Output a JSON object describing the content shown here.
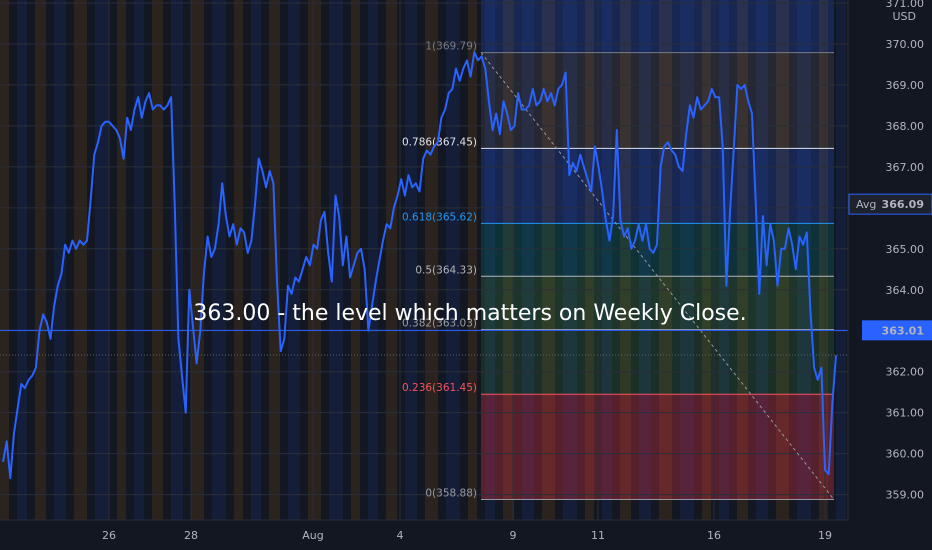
{
  "chart_data": {
    "type": "line",
    "currency": "USD",
    "x_ticks": [
      "26",
      "28",
      "Aug",
      "4",
      "9",
      "11",
      "16",
      "19"
    ],
    "y_ticks": [
      "359.00",
      "360.00",
      "361.00",
      "362.00",
      "363.00",
      "364.00",
      "365.00",
      "366.00",
      "367.00",
      "368.00",
      "369.00",
      "370.00",
      "371.00"
    ],
    "ylim": [
      358.6,
      371.0
    ],
    "annotation": "363.00 - the level which matters on Weekly Close.",
    "markers": [
      {
        "label": "Avg",
        "value": "366.09",
        "y": 366.09
      },
      {
        "label": "",
        "value": "363.01",
        "y": 363.01
      }
    ],
    "fibonacci": [
      {
        "label": "1(369.79)",
        "level": 369.79,
        "color": "#787b86"
      },
      {
        "label": "0.786(367.45)",
        "level": 367.45,
        "color": "#e0e3eb"
      },
      {
        "label": "0.618(365.62)",
        "level": 365.62,
        "color": "#2196f3"
      },
      {
        "label": "0.5(364.33)",
        "level": 364.33,
        "color": "#b2b5be"
      },
      {
        "label": "0.382(363.03)",
        "level": 363.03,
        "color": "#9c9c9c"
      },
      {
        "label": "0.236(361.45)",
        "level": 361.45,
        "color": "#f7525f"
      },
      {
        "label": "0(358.88)",
        "level": 358.88,
        "color": "#9598a1"
      }
    ],
    "series": [
      {
        "values": [
          359.8,
          360.3,
          359.4,
          360.5,
          361.1,
          361.7,
          361.6,
          361.8,
          361.9,
          362.1,
          363.0,
          363.4,
          363.2,
          362.8,
          363.6,
          364.1,
          364.4,
          365.1,
          364.9,
          365.2,
          365.0,
          365.2,
          365.1,
          365.2,
          366.2,
          367.3,
          367.6,
          368.0,
          368.1,
          368.1,
          368.0,
          367.9,
          367.7,
          367.2,
          368.2,
          367.9,
          368.4,
          368.7,
          368.2,
          368.6,
          368.8,
          368.4,
          368.5,
          368.5,
          368.4,
          368.5,
          368.7,
          366.1,
          362.8,
          361.9,
          361.0,
          364.0,
          363.1,
          362.2,
          363.0,
          364.4,
          365.3,
          364.8,
          365.0,
          365.6,
          366.6,
          365.8,
          365.3,
          365.6,
          365.1,
          365.5,
          365.4,
          364.9,
          365.2,
          366.1,
          367.2,
          366.9,
          366.5,
          366.9,
          366.6,
          364.2,
          362.5,
          362.8,
          364.1,
          363.9,
          364.3,
          364.2,
          364.5,
          364.8,
          364.6,
          365.1,
          365.0,
          365.7,
          365.9,
          364.9,
          364.2,
          366.3,
          365.8,
          364.6,
          365.3,
          364.3,
          364.6,
          364.9,
          365.0,
          364.5,
          363.0,
          363.6,
          364.2,
          364.7,
          365.2,
          365.6,
          365.5,
          366.0,
          366.3,
          366.7,
          366.3,
          366.8,
          366.5,
          366.6,
          366.4,
          367.2,
          367.4,
          367.3,
          367.5,
          367.6,
          368.2,
          368.4,
          368.8,
          368.9,
          369.4,
          369.1,
          369.4,
          369.6,
          369.2,
          369.8,
          369.6,
          369.7,
          369.4,
          368.6,
          367.9,
          368.3,
          367.8,
          368.6,
          368.3,
          367.9,
          368.0,
          368.8,
          368.4,
          368.4,
          368.5,
          368.9,
          368.5,
          368.6,
          368.9,
          368.6,
          368.8,
          368.5,
          368.9,
          369.0,
          369.3,
          366.8,
          367.1,
          366.9,
          367.3,
          367.0,
          366.7,
          366.4,
          367.5,
          367.0,
          366.4,
          365.7,
          365.2,
          365.8,
          367.9,
          365.7,
          365.3,
          365.5,
          365.0,
          365.2,
          365.6,
          365.2,
          365.6,
          365.0,
          364.9,
          365.1,
          367.0,
          367.5,
          367.6,
          367.4,
          367.3,
          367.0,
          366.9,
          367.8,
          368.5,
          368.2,
          368.7,
          368.4,
          368.5,
          368.6,
          368.9,
          368.7,
          368.7,
          367.5,
          364.1,
          365.9,
          367.4,
          369.0,
          368.9,
          369.0,
          368.6,
          368.3,
          366.2,
          363.9,
          365.8,
          364.6,
          365.6,
          365.2,
          364.1,
          365.0,
          365.0,
          365.5,
          365.1,
          364.5,
          365.3,
          365.1,
          365.4,
          363.5,
          362.1,
          361.8,
          362.1,
          359.6,
          359.5,
          361.2,
          362.4
        ]
      }
    ]
  }
}
